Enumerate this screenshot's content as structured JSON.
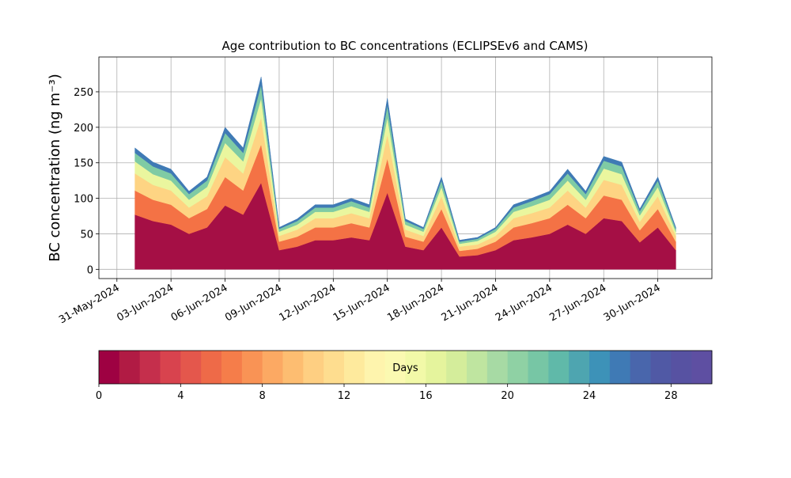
{
  "chart_data": {
    "type": "stacked_area",
    "title": "Age contribution to BC concentrations (ECLIPSEv6 and CAMS)",
    "y_label": "BC concentration (ng m⁻³)",
    "x": [
      "2024-06-01",
      "2024-06-02",
      "2024-06-03",
      "2024-06-04",
      "2024-06-05",
      "2024-06-06",
      "2024-06-07",
      "2024-06-08",
      "2024-06-09",
      "2024-06-10",
      "2024-06-11",
      "2024-06-12",
      "2024-06-13",
      "2024-06-14",
      "2024-06-15",
      "2024-06-16",
      "2024-06-17",
      "2024-06-18",
      "2024-06-19",
      "2024-06-20",
      "2024-06-21",
      "2024-06-22",
      "2024-06-23",
      "2024-06-24",
      "2024-06-25",
      "2024-06-26",
      "2024-06-27",
      "2024-06-28",
      "2024-06-29",
      "2024-06-30",
      "2024-07-01"
    ],
    "series": [
      {
        "color": "#a50f45",
        "values": [
          77,
          68,
          63,
          50,
          59,
          90,
          77,
          122,
          27,
          32,
          41,
          41,
          45,
          41,
          108,
          32,
          27,
          59,
          18,
          20,
          27,
          41,
          45,
          50,
          63,
          50,
          72,
          68,
          38,
          59,
          27
        ]
      },
      {
        "color": "#f47245",
        "values": [
          34,
          30,
          28,
          22,
          26,
          40,
          34,
          54,
          12,
          14,
          18,
          18,
          20,
          18,
          48,
          14,
          12,
          26,
          8,
          9,
          12,
          18,
          20,
          22,
          28,
          22,
          32,
          30,
          17,
          26,
          12
        ]
      },
      {
        "color": "#fed483",
        "values": [
          24,
          21,
          20,
          15,
          18,
          28,
          24,
          38,
          8,
          10,
          13,
          13,
          14,
          13,
          34,
          10,
          8,
          18,
          6,
          6,
          8,
          13,
          14,
          15,
          20,
          15,
          22,
          21,
          12,
          18,
          8
        ]
      },
      {
        "color": "#eaf69e",
        "values": [
          17,
          15,
          14,
          11,
          13,
          20,
          17,
          27,
          6,
          7,
          9,
          9,
          10,
          9,
          24,
          7,
          6,
          13,
          4,
          5,
          6,
          9,
          10,
          11,
          14,
          11,
          16,
          15,
          9,
          13,
          6
        ]
      },
      {
        "color": "#7fcba4",
        "values": [
          12,
          11,
          10,
          8,
          9,
          14,
          12,
          19,
          4,
          5,
          6,
          6,
          7,
          6,
          17,
          5,
          4,
          9,
          3,
          3,
          4,
          6,
          7,
          8,
          10,
          8,
          11,
          11,
          6,
          9,
          4
        ]
      },
      {
        "color": "#3f7ab5",
        "values": [
          7,
          6,
          6,
          4,
          5,
          8,
          7,
          11,
          2,
          3,
          4,
          4,
          4,
          4,
          10,
          3,
          2,
          5,
          2,
          2,
          2,
          4,
          4,
          4,
          6,
          4,
          6,
          6,
          3,
          5,
          2
        ]
      }
    ],
    "xlim": [
      "2024-05-30",
      "2024-07-03"
    ],
    "xticks": [
      {
        "value": "2024-05-31",
        "label": "31-May-2024"
      },
      {
        "value": "2024-06-03",
        "label": "03-Jun-2024"
      },
      {
        "value": "2024-06-06",
        "label": "06-Jun-2024"
      },
      {
        "value": "2024-06-09",
        "label": "09-Jun-2024"
      },
      {
        "value": "2024-06-12",
        "label": "12-Jun-2024"
      },
      {
        "value": "2024-06-15",
        "label": "15-Jun-2024"
      },
      {
        "value": "2024-06-18",
        "label": "18-Jun-2024"
      },
      {
        "value": "2024-06-21",
        "label": "21-Jun-2024"
      },
      {
        "value": "2024-06-24",
        "label": "24-Jun-2024"
      },
      {
        "value": "2024-06-27",
        "label": "27-Jun-2024"
      },
      {
        "value": "2024-06-30",
        "label": "30-Jun-2024"
      }
    ],
    "ylim": [
      -13,
      299
    ],
    "yticks": [
      0,
      50,
      100,
      150,
      200,
      250
    ],
    "grid": true,
    "colorbar": {
      "label": "Days",
      "lim": [
        0,
        30
      ],
      "ticks": [
        0,
        4,
        8,
        12,
        16,
        20,
        24,
        28
      ],
      "colors": [
        "#9e0142",
        "#b11b44",
        "#c52f4c",
        "#d8434e",
        "#e4574c",
        "#ee6a48",
        "#f57d4a",
        "#f99355",
        "#fca963",
        "#fdbd71",
        "#fecf82",
        "#fedd8f",
        "#feea9d",
        "#fef4ad",
        "#fbf9b1",
        "#f2f9a8",
        "#e5f49d",
        "#d4ed9b",
        "#bfe5a0",
        "#a7daa4",
        "#8fd1a4",
        "#77c6a5",
        "#60b9a9",
        "#4ea5b0",
        "#3d92b8",
        "#3f7ab5",
        "#4966ac",
        "#5059a5",
        "#5752a2",
        "#5e4fa2"
      ]
    }
  }
}
